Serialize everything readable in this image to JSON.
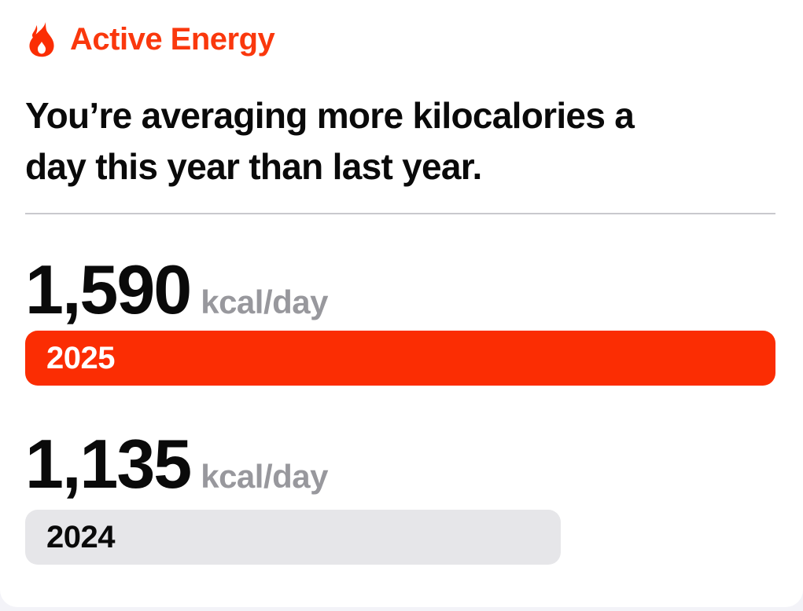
{
  "colors": {
    "accent_red": "#FA380D",
    "bar_red": "#FB2D03",
    "bar_gray": "#E6E6E9",
    "unit_gray": "#98989D",
    "divider_gray": "#C9C9CD",
    "text_black": "#0A0A0A",
    "page_background": "#F3F3F8",
    "card_background": "#FFFFFF"
  },
  "header": {
    "icon": "flame-icon",
    "title": "Active Energy"
  },
  "headline": {
    "line1": "You’re averaging more kilocalories a",
    "line2": "day this year than last year."
  },
  "comparison": {
    "current": {
      "value": "1,590",
      "unit": "kcal/day",
      "year": "2025"
    },
    "previous": {
      "value": "1,135",
      "unit": "kcal/day",
      "year": "2024"
    }
  },
  "chart_data": {
    "type": "bar",
    "orientation": "horizontal",
    "title": "Active Energy — average kilocalories per day by year",
    "categories": [
      "2025",
      "2024"
    ],
    "values": [
      1590,
      1135
    ],
    "unit": "kcal/day",
    "value_labels": [
      "1,590",
      "1,135"
    ],
    "bar_colors": [
      "#FB2D03",
      "#E6E6E9"
    ],
    "xlim": [
      0,
      1590
    ],
    "grid": false,
    "legend": false
  }
}
